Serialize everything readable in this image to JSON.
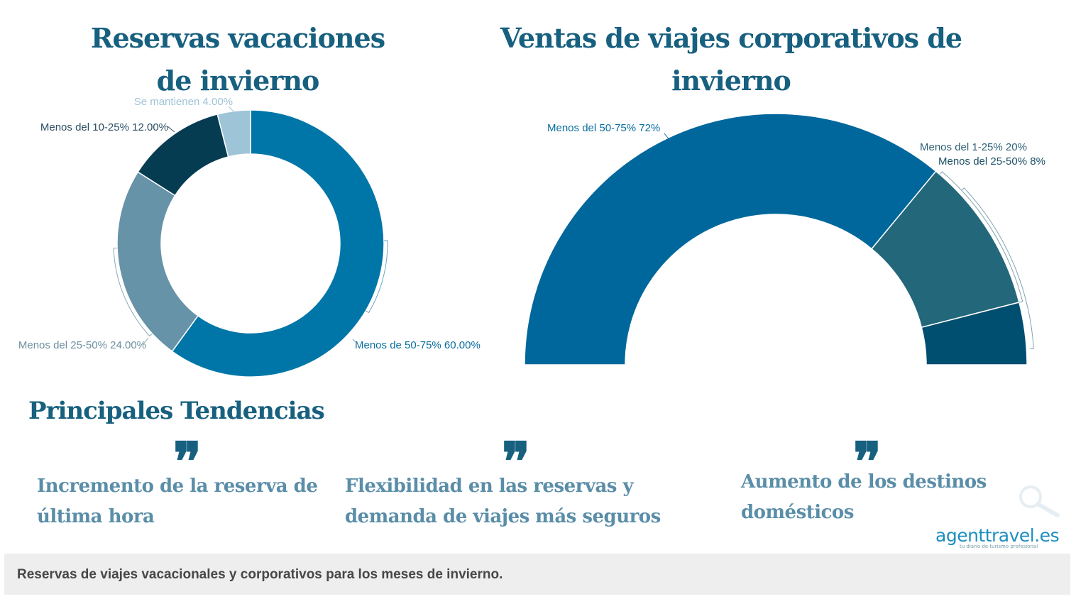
{
  "titles": {
    "left": "Reservas vacaciones de invierno",
    "right": "Ventas de viajes corporativos de invierno",
    "trends": "Principales Tendencias"
  },
  "chart_data": [
    {
      "type": "pie",
      "title": "Reservas vacaciones de invierno",
      "style": "donut",
      "slices": [
        {
          "label": "Menos de 50-75%",
          "value": 60.0,
          "display": "Menos de 50-75% 60.00%",
          "color": "#0076a8"
        },
        {
          "label": "Menos del 25-50%",
          "value": 24.0,
          "display": "Menos del 25-50% 24.00%",
          "color": "#6693a8"
        },
        {
          "label": "Menos del 10-25%",
          "value": 12.0,
          "display": "Menos del 10-25% 12.00%",
          "color": "#063c52"
        },
        {
          "label": "Se mantienen",
          "value": 4.0,
          "display": "Se mantienen 4.00%",
          "color": "#9ec4d8"
        }
      ]
    },
    {
      "type": "pie",
      "title": "Ventas de viajes corporativos de invierno",
      "style": "half-donut",
      "slices": [
        {
          "label": "Menos del 50-75%",
          "value": 72,
          "display": "Menos del 50-75% 72%",
          "color": "#00679c"
        },
        {
          "label": "Menos del 1-25%",
          "value": 20,
          "display": "Menos del 1-25% 20%",
          "color": "#23677b"
        },
        {
          "label": "Menos del 25-50%",
          "value": 8,
          "display": "Menos del 25-50% 8%",
          "color": "#004e70"
        }
      ]
    }
  ],
  "trends": [
    {
      "quote": "❞",
      "text": "Incremento de la reserva de última hora"
    },
    {
      "quote": "❞",
      "text": "Flexibilidad en las reservas y demanda de viajes más seguros"
    },
    {
      "quote": "❞",
      "text": "Aumento de los destinos domésticos"
    }
  ],
  "logo": {
    "text": "agenttravel.es",
    "tagline": "tu diario de turismo profesional"
  },
  "caption": "Reservas de viajes vacacionales y corporativos para los meses de invierno.",
  "icons": {
    "magnifier": "search-icon"
  }
}
